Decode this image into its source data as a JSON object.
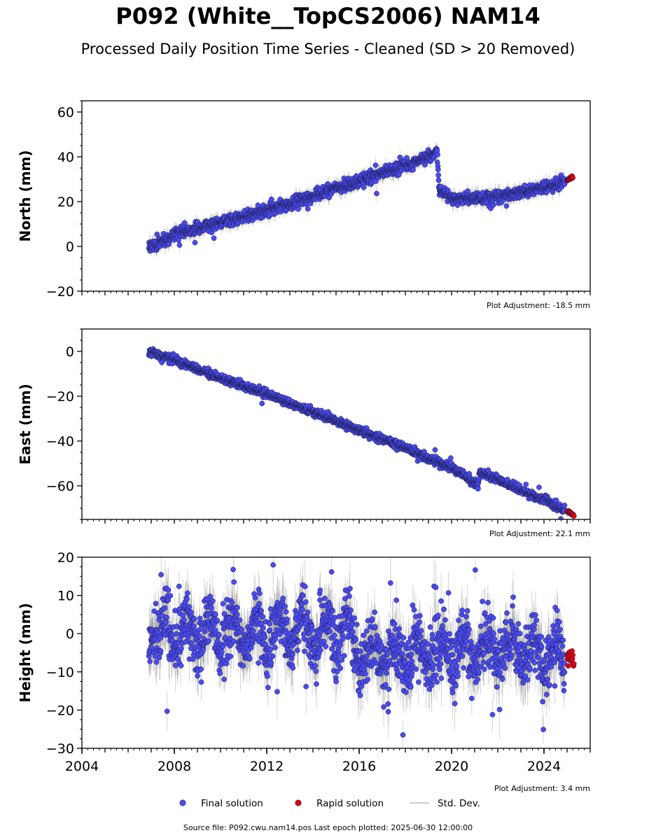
{
  "figure": {
    "title": "P092 (White__TopCS2006) NAM14",
    "subtitle": "Processed Daily Position Time Series - Cleaned (SD > 20 Removed)",
    "source_note": "Source file: P092.cwu.nam14.pos  Last epoch plotted: 2025-06-30 12:00:00"
  },
  "legend": {
    "final": "Final solution",
    "rapid": "Rapid solution",
    "std": "Std. Dev."
  },
  "colors": {
    "final": "#4a4af4",
    "rapid": "#e3000f",
    "std": "#555555",
    "marker_edge": "#1a1a3a"
  },
  "chart_data": [
    {
      "type": "scatter",
      "ylabel": "North (mm)",
      "adjustment": "Plot Adjustment: -18.5 mm",
      "xlim": [
        2004,
        2026
      ],
      "ylim": [
        -20,
        65
      ],
      "yticks": [
        -20,
        0,
        20,
        40,
        60
      ],
      "yticklabels": [
        "−20",
        "0",
        "20",
        "40",
        "60"
      ],
      "series": [
        {
          "x": [
            2006.9,
            2007.5,
            2008.0,
            2009.0,
            2010.0,
            2011.0,
            2012.0,
            2013.0,
            2014.0,
            2015.0,
            2016.0,
            2017.0,
            2018.0,
            2019.0,
            2019.38,
            2019.45,
            2020.0,
            2021.0,
            2022.0,
            2023.0,
            2024.0,
            2024.9
          ],
          "y": [
            0,
            2,
            5,
            8,
            11,
            13,
            16,
            19,
            22.5,
            26,
            29,
            32.5,
            36,
            40,
            43,
            26,
            21,
            21.5,
            22,
            24,
            26,
            29
          ]
        },
        {
          "x": [
            2025.0,
            2025.25
          ],
          "y": [
            30,
            31
          ]
        }
      ],
      "scatter_sd": 1.3,
      "std_dev": 2.5
    },
    {
      "type": "scatter",
      "ylabel": "East (mm)",
      "adjustment": "Plot Adjustment: 22.1 mm",
      "xlim": [
        2004,
        2026
      ],
      "ylim": [
        -75,
        10
      ],
      "yticks": [
        -60,
        -40,
        -20,
        0
      ],
      "yticklabels": [
        "−60",
        "−40",
        "−20",
        "0"
      ],
      "series": [
        {
          "x": [
            2006.9,
            2008.0,
            2010.0,
            2012.0,
            2014.0,
            2016.0,
            2018.0,
            2020.0,
            2021.0,
            2021.15,
            2021.2,
            2022.0,
            2023.0,
            2024.0,
            2024.9
          ],
          "y": [
            0,
            -4,
            -12,
            -19,
            -27,
            -35,
            -43,
            -52,
            -59,
            -60,
            -54,
            -57,
            -62,
            -66,
            -71
          ]
        },
        {
          "x": [
            2025.0,
            2025.3
          ],
          "y": [
            -71.5,
            -73
          ]
        }
      ],
      "scatter_sd": 0.9,
      "std_dev": 1.5
    },
    {
      "type": "scatter",
      "ylabel": "Height (mm)",
      "adjustment": "Plot Adjustment: 3.4 mm",
      "xlim": [
        2004,
        2026
      ],
      "ylim": [
        -30,
        20
      ],
      "yticks": [
        -30,
        -20,
        -10,
        0,
        10,
        20
      ],
      "yticklabels": [
        "−30",
        "−20",
        "−10",
        "0",
        "10",
        "20"
      ],
      "xticks": [
        2004,
        2008,
        2012,
        2016,
        2020,
        2024
      ],
      "xticklabels": [
        "2004",
        "2008",
        "2012",
        "2016",
        "2020",
        "2024"
      ],
      "series": [
        {
          "x": [
            2006.9,
            2010.0,
            2013.0,
            2015.5,
            2016.0,
            2018.0,
            2020.0,
            2022.0,
            2024.9
          ],
          "y": [
            1,
            0,
            0,
            0,
            -5,
            -6,
            -5,
            -4,
            -6
          ]
        },
        {
          "x": [
            2025.0,
            2025.3
          ],
          "y": [
            -6,
            -7
          ]
        }
      ],
      "seasonal_amplitude": 4,
      "scatter_sd": 4.0,
      "std_dev": 5.0
    }
  ]
}
